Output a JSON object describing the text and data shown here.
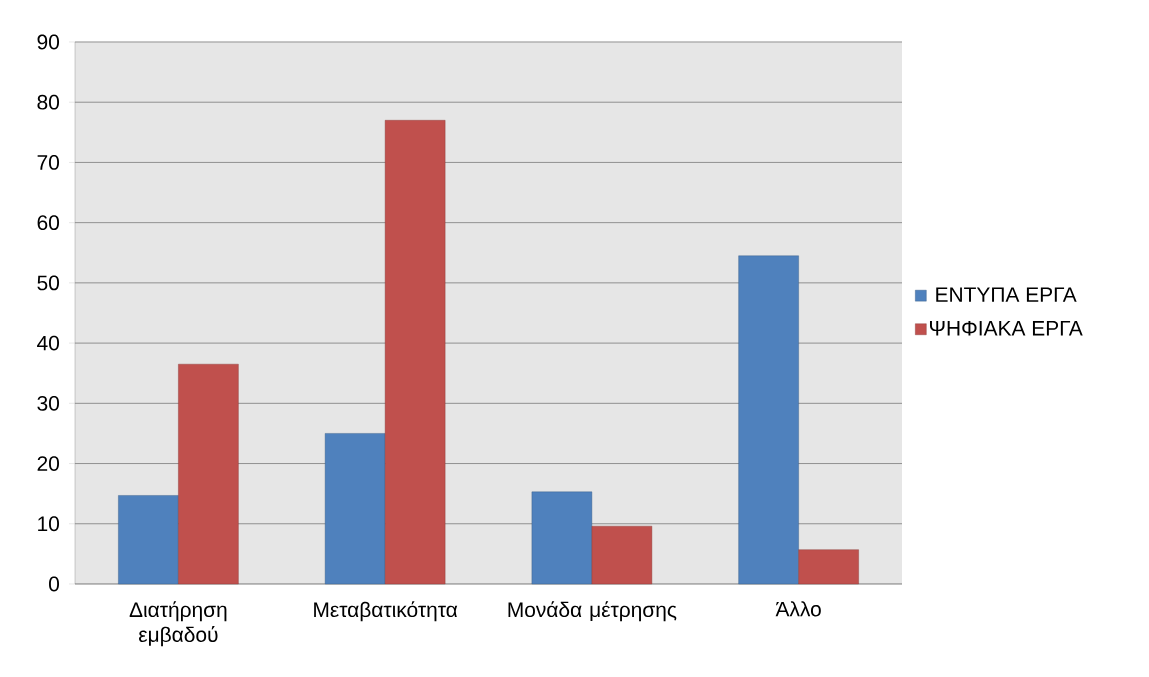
{
  "chart_data": {
    "type": "bar",
    "categories": [
      "Διατήρηση εμβαδού",
      "Μεταβατικότητα",
      "Μονάδα μέτρησης",
      "Άλλο"
    ],
    "series": [
      {
        "name": "ΕΝΤΥΠΑ ΕΡΓΑ",
        "color": "#4f81bd",
        "values": [
          14.7,
          25.0,
          15.3,
          54.5
        ]
      },
      {
        "name": "ΨΗΦΙΑΚΑ ΕΡΓΑ",
        "color": "#c0504d",
        "values": [
          36.5,
          77.0,
          9.6,
          5.7
        ]
      }
    ],
    "ylim": [
      0,
      90
    ],
    "yticks": [
      0,
      10,
      20,
      30,
      40,
      50,
      60,
      70,
      80,
      90
    ],
    "grid": "y",
    "legend": "right"
  }
}
